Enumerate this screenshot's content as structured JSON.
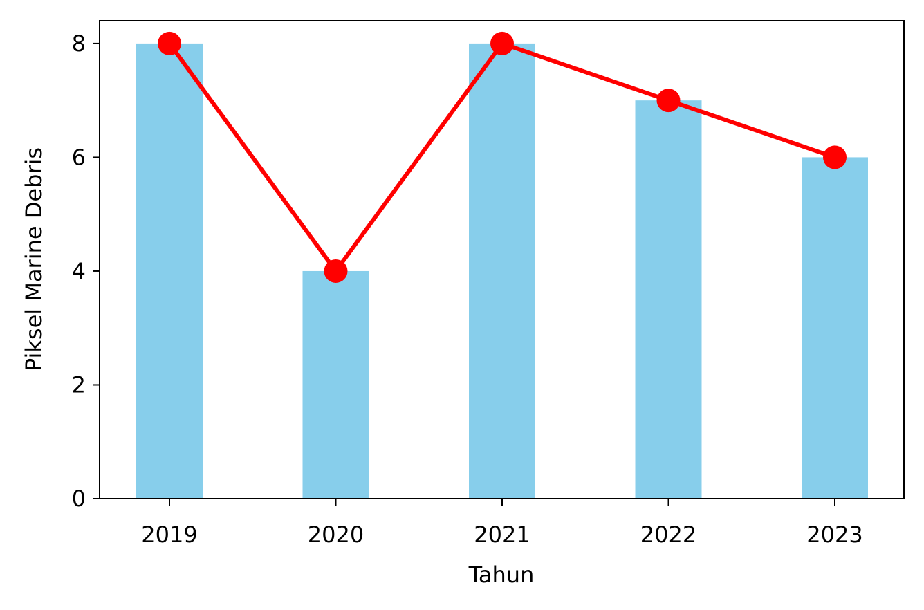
{
  "chart_data": {
    "type": "bar",
    "title": "",
    "xlabel": "Tahun",
    "ylabel": "Piksel Marine Debris",
    "categories": [
      "2019",
      "2020",
      "2021",
      "2022",
      "2023"
    ],
    "values": [
      8,
      4,
      8,
      7,
      6
    ],
    "line_values": [
      8,
      4,
      8,
      7,
      6
    ],
    "ylim": [
      0,
      8.4
    ],
    "yticks": [
      "0",
      "2",
      "4",
      "6",
      "8"
    ],
    "ytick_values": [
      0,
      2,
      4,
      6,
      8
    ],
    "grid": false,
    "bar_color": "#87CEEB",
    "line_color": "#FF0000",
    "marker": "circle"
  }
}
